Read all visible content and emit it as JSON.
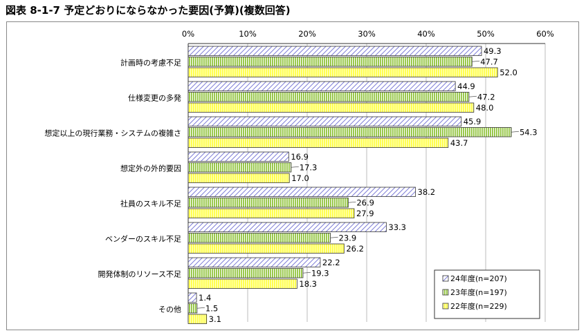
{
  "header": {
    "title": "図表 8-1-7 予定どおりにならなかった要因(予算)(複数回答)"
  },
  "colors": {
    "series1": "#9999dd",
    "series2": "#99cc55",
    "series3": "#ffff66",
    "grid": "#999999"
  },
  "chart_data": {
    "type": "bar",
    "orientation": "horizontal",
    "title": "",
    "xlabel": "",
    "ylabel": "",
    "xlim": [
      0,
      60
    ],
    "ticks": [
      0,
      10,
      20,
      30,
      40,
      50,
      60
    ],
    "tick_labels": [
      "0%",
      "10%",
      "20%",
      "30%",
      "40%",
      "50%",
      "60%"
    ],
    "grid": true,
    "legend_position": "bottom-right",
    "categories": [
      "計画時の考慮不足",
      "仕様変更の多発",
      "想定以上の現行業務・システムの複雑さ",
      "想定外の外的要因",
      "社員のスキル不足",
      "ベンダーのスキル不足",
      "開発体制のリソース不足",
      "その他"
    ],
    "series": [
      {
        "name": "24年度(n=207)",
        "values": [
          49.3,
          44.9,
          45.9,
          16.9,
          38.2,
          33.3,
          22.2,
          1.4
        ]
      },
      {
        "name": "23年度(n=197)",
        "values": [
          47.7,
          47.2,
          54.3,
          17.3,
          26.9,
          23.9,
          19.3,
          1.5
        ]
      },
      {
        "name": "22年度(n=229)",
        "values": [
          52.0,
          48.0,
          43.7,
          17.0,
          27.9,
          26.2,
          18.3,
          3.1
        ]
      }
    ]
  }
}
